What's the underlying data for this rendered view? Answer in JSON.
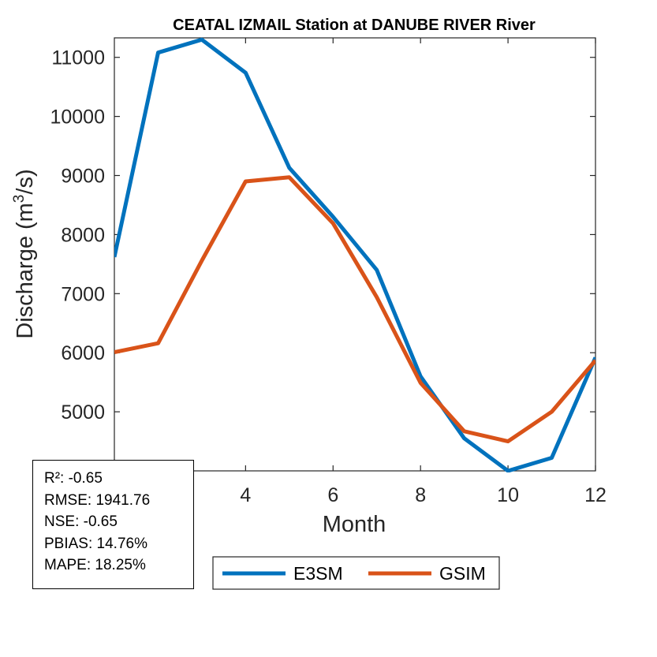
{
  "chart_data": {
    "type": "line",
    "title": "CEATAL IZMAIL  Station at  DANUBE RIVER  River",
    "xlabel": "Month",
    "ylabel_main": "Discharge (m",
    "ylabel_sup": "3",
    "ylabel_end": "/s)",
    "xlim": [
      1,
      12
    ],
    "ylim": [
      4000,
      11330
    ],
    "xticks": [
      4,
      6,
      8,
      10,
      12
    ],
    "yticks": [
      5000,
      6000,
      7000,
      8000,
      9000,
      10000,
      11000
    ],
    "x": [
      1,
      2,
      3,
      4,
      5,
      6,
      7,
      8,
      9,
      10,
      11,
      12
    ],
    "series": [
      {
        "name": "E3SM",
        "color": "#0072BD",
        "values": [
          7620,
          11080,
          11300,
          10740,
          9130,
          8300,
          7400,
          5600,
          4550,
          4000,
          4220,
          5920
        ]
      },
      {
        "name": "GSIM",
        "color": "#D95319",
        "values": [
          6010,
          6160,
          7560,
          8900,
          8970,
          8190,
          6940,
          5490,
          4670,
          4500,
          5000,
          5870
        ]
      }
    ],
    "grid": false,
    "legend": "bottom"
  },
  "stats": {
    "r2": "R²: -0.65",
    "rmse": "RMSE: 1941.76",
    "nse": "NSE: -0.65",
    "pbias": "PBIAS: 14.76%",
    "mape": "MAPE: 18.25%"
  }
}
